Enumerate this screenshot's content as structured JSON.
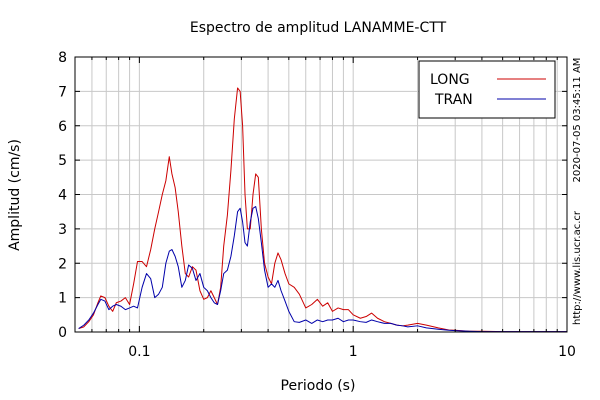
{
  "chart_data": {
    "type": "line",
    "title": "Espectro de amplitud LANAMME-CTT",
    "xlabel": "Periodo (s)",
    "ylabel": "Amplitud (cm/s)",
    "x_scale": "log",
    "xlim": [
      0.05,
      10
    ],
    "ylim": [
      0,
      8
    ],
    "x_ticks": [
      {
        "value": 0.1,
        "label": "0.1"
      },
      {
        "value": 1,
        "label": "1"
      },
      {
        "value": 10,
        "label": "10"
      }
    ],
    "y_ticks": [
      0,
      1,
      2,
      3,
      4,
      5,
      6,
      7,
      8
    ],
    "grid": true,
    "legend_position": "top-right",
    "side_text_top": "2020-07-05 03:45:11 AM",
    "side_text_bottom": "http://www.lis.ucr.ac.cr",
    "series": [
      {
        "name": "LONG",
        "color": "#cc0000",
        "points": [
          [
            0.052,
            0.1
          ],
          [
            0.055,
            0.15
          ],
          [
            0.058,
            0.3
          ],
          [
            0.061,
            0.5
          ],
          [
            0.064,
            0.85
          ],
          [
            0.066,
            1.05
          ],
          [
            0.069,
            1.0
          ],
          [
            0.072,
            0.75
          ],
          [
            0.075,
            0.6
          ],
          [
            0.078,
            0.85
          ],
          [
            0.082,
            0.9
          ],
          [
            0.086,
            1.0
          ],
          [
            0.09,
            0.8
          ],
          [
            0.094,
            1.4
          ],
          [
            0.098,
            2.05
          ],
          [
            0.103,
            2.05
          ],
          [
            0.108,
            1.9
          ],
          [
            0.113,
            2.4
          ],
          [
            0.118,
            3.0
          ],
          [
            0.123,
            3.5
          ],
          [
            0.128,
            4.0
          ],
          [
            0.133,
            4.4
          ],
          [
            0.138,
            5.1
          ],
          [
            0.142,
            4.6
          ],
          [
            0.147,
            4.2
          ],
          [
            0.152,
            3.5
          ],
          [
            0.158,
            2.5
          ],
          [
            0.164,
            1.7
          ],
          [
            0.17,
            1.6
          ],
          [
            0.177,
            1.9
          ],
          [
            0.184,
            1.8
          ],
          [
            0.192,
            1.2
          ],
          [
            0.2,
            0.95
          ],
          [
            0.208,
            1.0
          ],
          [
            0.216,
            1.2
          ],
          [
            0.224,
            1.0
          ],
          [
            0.232,
            0.8
          ],
          [
            0.24,
            1.3
          ],
          [
            0.248,
            2.5
          ],
          [
            0.258,
            3.4
          ],
          [
            0.268,
            4.7
          ],
          [
            0.278,
            6.2
          ],
          [
            0.288,
            7.1
          ],
          [
            0.296,
            7.0
          ],
          [
            0.304,
            6.0
          ],
          [
            0.312,
            4.0
          ],
          [
            0.32,
            3.0
          ],
          [
            0.33,
            3.0
          ],
          [
            0.34,
            4.0
          ],
          [
            0.35,
            4.6
          ],
          [
            0.36,
            4.5
          ],
          [
            0.372,
            3.0
          ],
          [
            0.385,
            2.0
          ],
          [
            0.4,
            1.6
          ],
          [
            0.415,
            1.4
          ],
          [
            0.43,
            2.0
          ],
          [
            0.445,
            2.3
          ],
          [
            0.46,
            2.1
          ],
          [
            0.48,
            1.7
          ],
          [
            0.5,
            1.4
          ],
          [
            0.53,
            1.3
          ],
          [
            0.56,
            1.1
          ],
          [
            0.6,
            0.7
          ],
          [
            0.64,
            0.8
          ],
          [
            0.68,
            0.95
          ],
          [
            0.72,
            0.75
          ],
          [
            0.76,
            0.85
          ],
          [
            0.8,
            0.6
          ],
          [
            0.85,
            0.7
          ],
          [
            0.9,
            0.65
          ],
          [
            0.95,
            0.65
          ],
          [
            1.0,
            0.5
          ],
          [
            1.08,
            0.4
          ],
          [
            1.15,
            0.45
          ],
          [
            1.22,
            0.55
          ],
          [
            1.3,
            0.4
          ],
          [
            1.4,
            0.3
          ],
          [
            1.5,
            0.25
          ],
          [
            1.6,
            0.2
          ],
          [
            1.7,
            0.18
          ],
          [
            1.8,
            0.2
          ],
          [
            2.0,
            0.25
          ],
          [
            2.2,
            0.2
          ],
          [
            2.5,
            0.12
          ],
          [
            2.8,
            0.06
          ],
          [
            3.0,
            0.05
          ],
          [
            3.5,
            0.02
          ],
          [
            4.0,
            0.02
          ],
          [
            5.0,
            0.01
          ],
          [
            7.0,
            0.01
          ],
          [
            10.0,
            0.01
          ]
        ]
      },
      {
        "name": "TRAN",
        "color": "#0000aa",
        "points": [
          [
            0.052,
            0.1
          ],
          [
            0.055,
            0.2
          ],
          [
            0.058,
            0.35
          ],
          [
            0.061,
            0.55
          ],
          [
            0.064,
            0.8
          ],
          [
            0.066,
            0.95
          ],
          [
            0.069,
            0.9
          ],
          [
            0.072,
            0.65
          ],
          [
            0.075,
            0.75
          ],
          [
            0.078,
            0.8
          ],
          [
            0.082,
            0.75
          ],
          [
            0.086,
            0.65
          ],
          [
            0.09,
            0.7
          ],
          [
            0.094,
            0.75
          ],
          [
            0.098,
            0.7
          ],
          [
            0.103,
            1.3
          ],
          [
            0.108,
            1.7
          ],
          [
            0.113,
            1.55
          ],
          [
            0.118,
            1.0
          ],
          [
            0.123,
            1.1
          ],
          [
            0.128,
            1.3
          ],
          [
            0.133,
            2.0
          ],
          [
            0.138,
            2.35
          ],
          [
            0.142,
            2.4
          ],
          [
            0.147,
            2.2
          ],
          [
            0.152,
            1.9
          ],
          [
            0.158,
            1.3
          ],
          [
            0.164,
            1.5
          ],
          [
            0.17,
            1.95
          ],
          [
            0.177,
            1.85
          ],
          [
            0.184,
            1.5
          ],
          [
            0.192,
            1.7
          ],
          [
            0.2,
            1.3
          ],
          [
            0.208,
            1.2
          ],
          [
            0.216,
            1.0
          ],
          [
            0.224,
            0.85
          ],
          [
            0.232,
            0.8
          ],
          [
            0.24,
            1.2
          ],
          [
            0.248,
            1.7
          ],
          [
            0.258,
            1.8
          ],
          [
            0.268,
            2.2
          ],
          [
            0.278,
            2.8
          ],
          [
            0.288,
            3.5
          ],
          [
            0.296,
            3.6
          ],
          [
            0.304,
            3.2
          ],
          [
            0.312,
            2.6
          ],
          [
            0.32,
            2.5
          ],
          [
            0.33,
            3.2
          ],
          [
            0.34,
            3.6
          ],
          [
            0.35,
            3.65
          ],
          [
            0.36,
            3.3
          ],
          [
            0.372,
            2.6
          ],
          [
            0.385,
            1.8
          ],
          [
            0.4,
            1.3
          ],
          [
            0.415,
            1.4
          ],
          [
            0.43,
            1.3
          ],
          [
            0.445,
            1.5
          ],
          [
            0.46,
            1.2
          ],
          [
            0.48,
            0.9
          ],
          [
            0.5,
            0.6
          ],
          [
            0.53,
            0.3
          ],
          [
            0.56,
            0.28
          ],
          [
            0.6,
            0.35
          ],
          [
            0.64,
            0.25
          ],
          [
            0.68,
            0.35
          ],
          [
            0.72,
            0.3
          ],
          [
            0.76,
            0.35
          ],
          [
            0.8,
            0.35
          ],
          [
            0.85,
            0.4
          ],
          [
            0.9,
            0.3
          ],
          [
            0.95,
            0.35
          ],
          [
            1.0,
            0.35
          ],
          [
            1.08,
            0.3
          ],
          [
            1.15,
            0.28
          ],
          [
            1.22,
            0.35
          ],
          [
            1.3,
            0.3
          ],
          [
            1.4,
            0.25
          ],
          [
            1.5,
            0.25
          ],
          [
            1.6,
            0.2
          ],
          [
            1.7,
            0.18
          ],
          [
            1.8,
            0.15
          ],
          [
            2.0,
            0.18
          ],
          [
            2.2,
            0.12
          ],
          [
            2.5,
            0.08
          ],
          [
            2.8,
            0.05
          ],
          [
            3.0,
            0.04
          ],
          [
            3.5,
            0.02
          ],
          [
            4.0,
            0.01
          ],
          [
            5.0,
            0.01
          ],
          [
            7.0,
            0.01
          ],
          [
            10.0,
            0.01
          ]
        ]
      }
    ]
  }
}
